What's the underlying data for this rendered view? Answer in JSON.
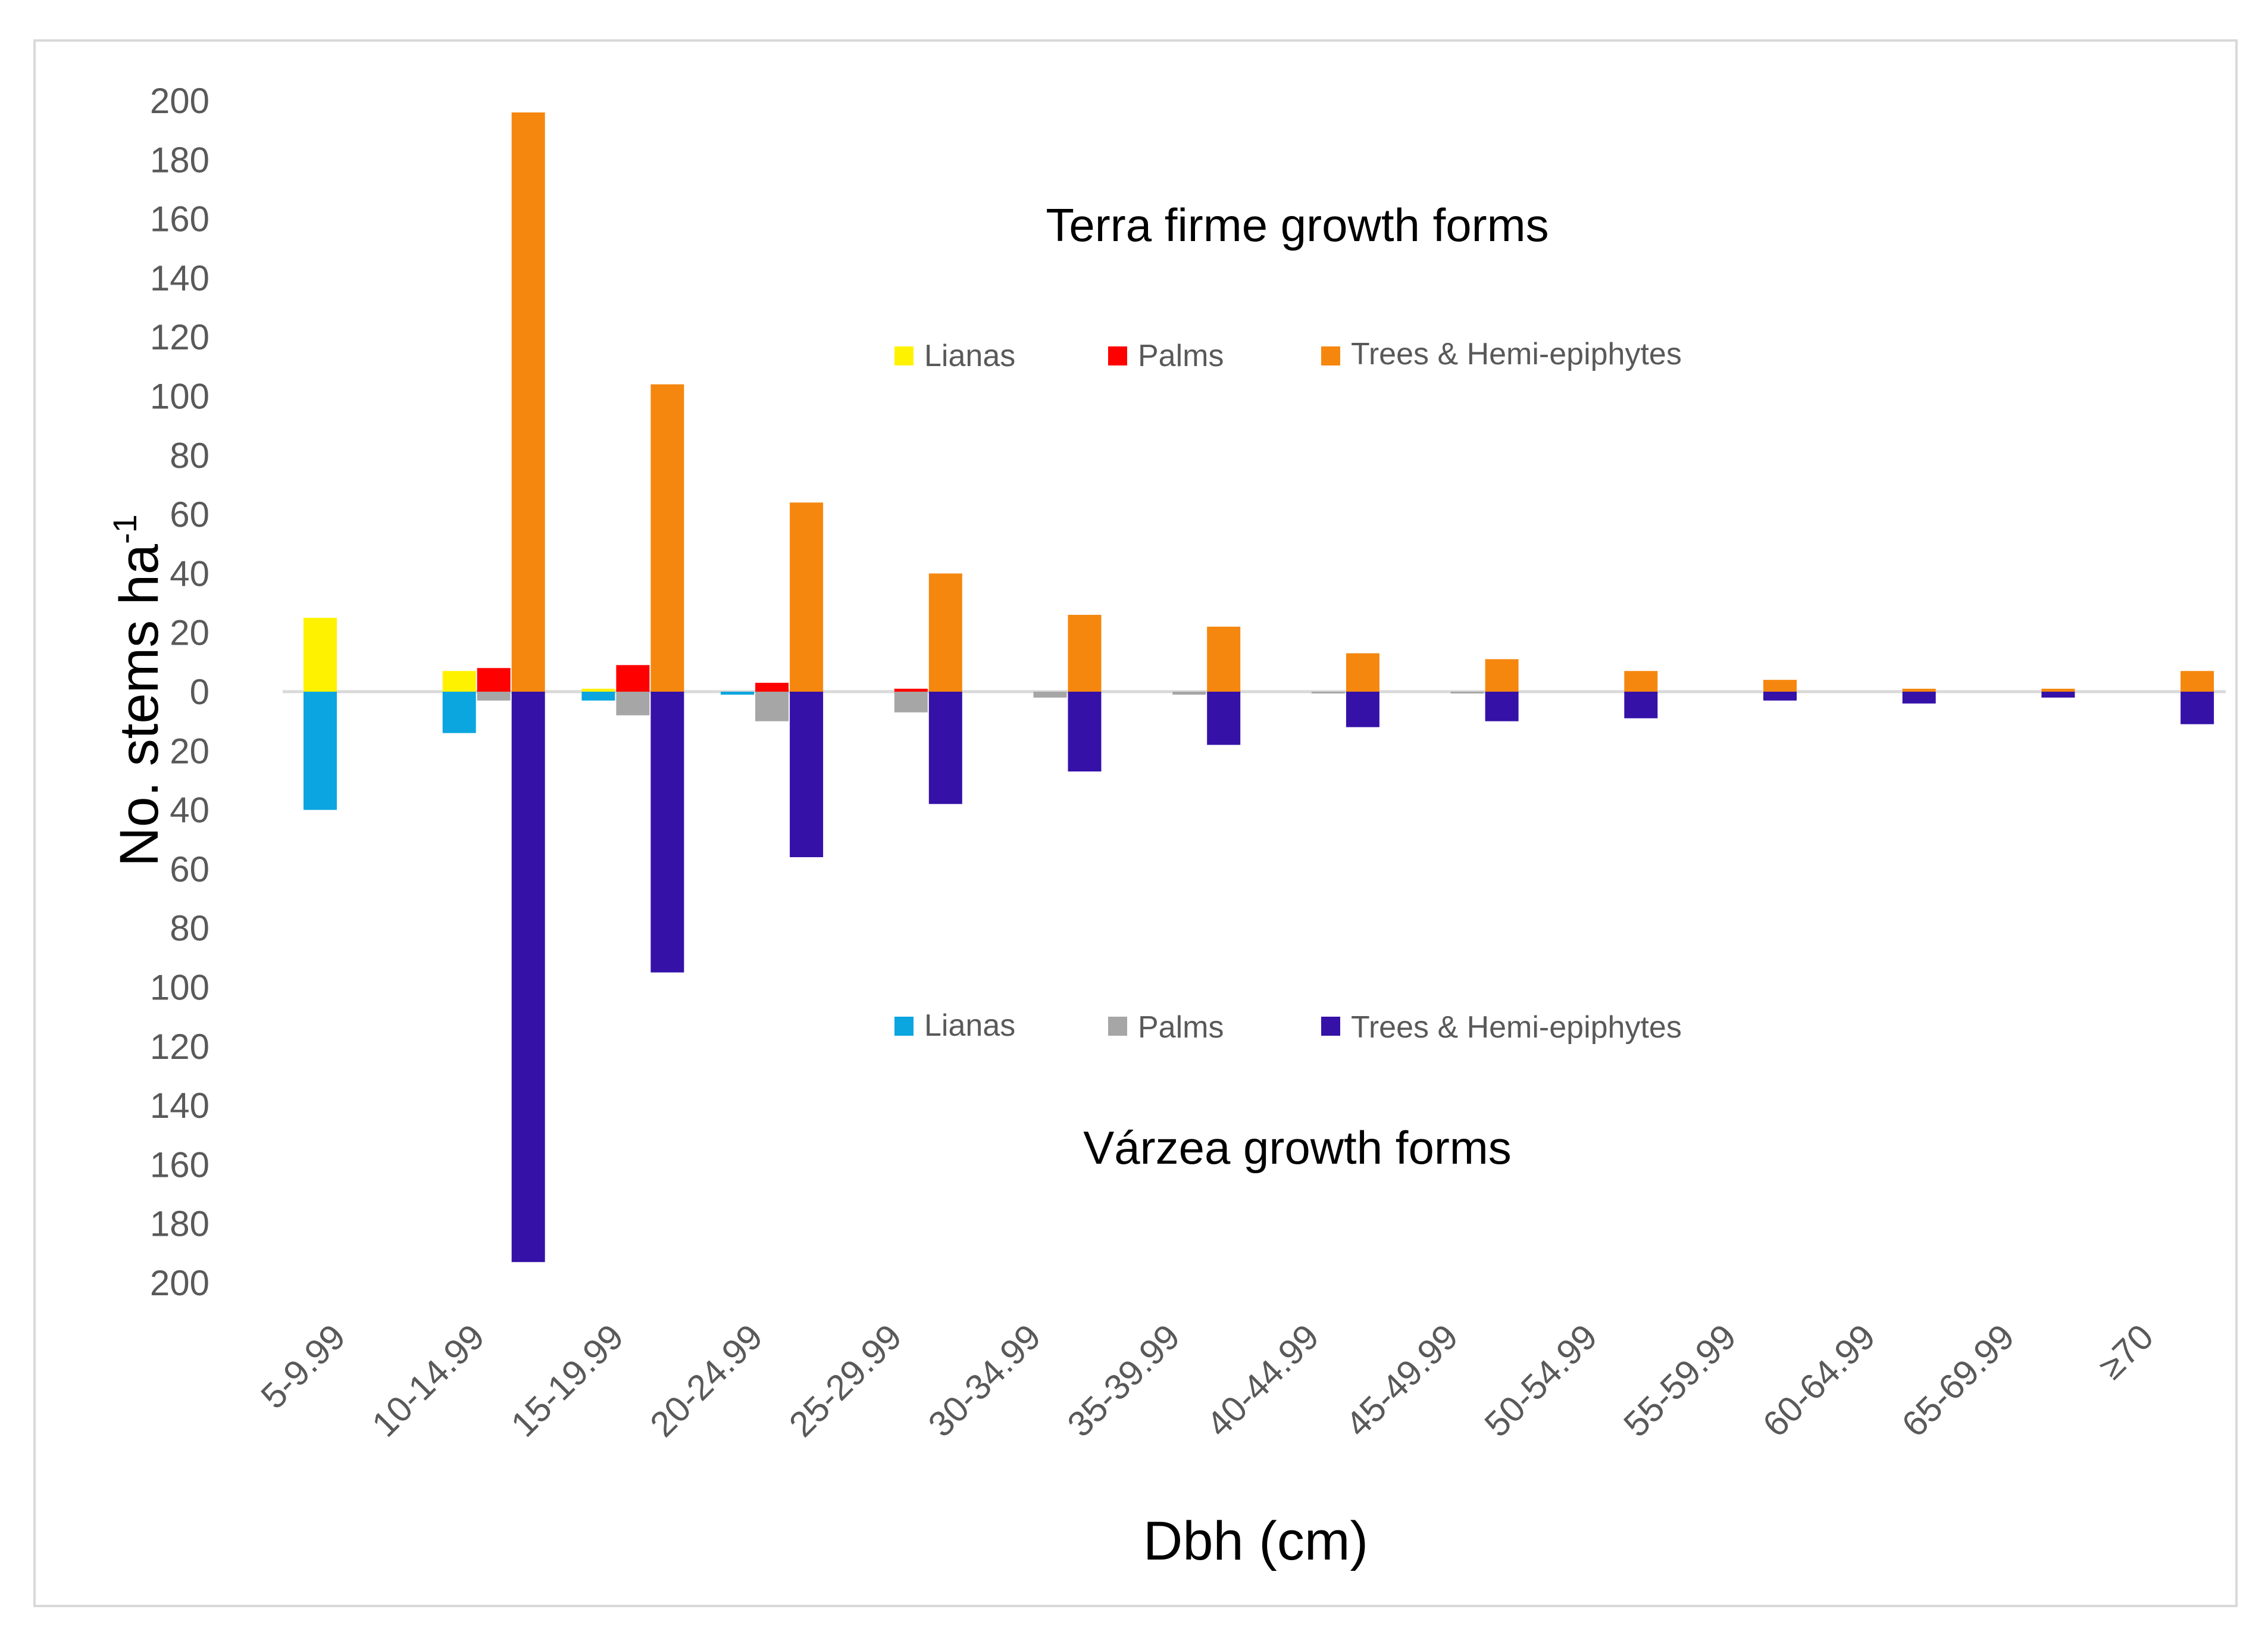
{
  "chart_data": {
    "type": "bar",
    "xlabel": "Dbh (cm)",
    "ylabel_main": "No. stems ha",
    "ylabel_sup": "-1",
    "ylim": [
      -200,
      200
    ],
    "yticks": [
      200,
      180,
      160,
      140,
      120,
      100,
      80,
      60,
      40,
      20,
      0,
      20,
      40,
      60,
      80,
      100,
      120,
      140,
      160,
      180,
      200
    ],
    "categories": [
      "5-9.99",
      "10-14.99",
      "15-19.99",
      "20-24.99",
      "25-29.99",
      "30-34.99",
      "35-39.99",
      "40-44.99",
      "45-49.99",
      "50-54.99",
      "55-59.99",
      "60-64.99",
      "65-69.99",
      "≥70"
    ],
    "groups": [
      {
        "title": "Terra firme growth forms",
        "direction": "up",
        "series": [
          {
            "name": "Lianas",
            "color": "#FFF200",
            "values": [
              25,
              7,
              1,
              0,
              0,
              0,
              0,
              0,
              0,
              0,
              0,
              0,
              0,
              0
            ]
          },
          {
            "name": "Palms",
            "color": "#FF0000",
            "values": [
              0,
              8,
              9,
              3,
              1,
              0,
              0,
              0,
              0,
              0,
              0,
              0,
              0,
              0
            ]
          },
          {
            "name": "Trees & Hemi-epiphytes",
            "color": "#F5870F",
            "values": [
              0,
              196,
              104,
              64,
              40,
              26,
              22,
              13,
              11,
              7,
              4,
              1,
              1,
              7
            ]
          }
        ]
      },
      {
        "title": "Várzea growth forms",
        "direction": "down",
        "series": [
          {
            "name": "Lianas",
            "color": "#0BA5DF",
            "values": [
              40,
              14,
              3,
              1,
              0,
              0,
              0,
              0,
              0,
              0,
              0,
              0,
              0,
              0
            ]
          },
          {
            "name": "Palms",
            "color": "#A6A6A6",
            "values": [
              0,
              3,
              8,
              10,
              7,
              2,
              1,
              0.5,
              0.5,
              0,
              0,
              0,
              0,
              0
            ]
          },
          {
            "name": "Trees & Hemi-epiphytes",
            "color": "#3511A8",
            "values": [
              0,
              193,
              95,
              56,
              38,
              27,
              18,
              12,
              10,
              9,
              3,
              4,
              2,
              11
            ]
          }
        ]
      }
    ]
  }
}
